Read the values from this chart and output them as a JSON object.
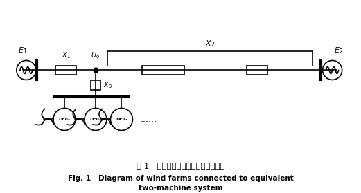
{
  "bg_color": "#ffffff",
  "title_cn": "图 1   风电场接入等值两机系统示意图",
  "title_en_line1": "Fig. 1   Diagram of wind farms connected to equivalent",
  "title_en_line2": "two-machine system",
  "fig_width": 5.21,
  "fig_height": 2.79,
  "dpi": 100
}
